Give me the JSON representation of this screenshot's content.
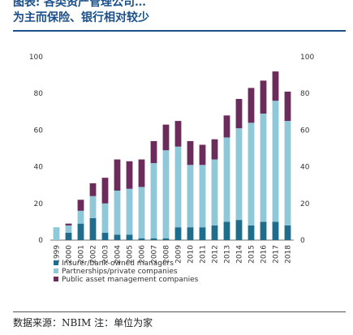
{
  "header": {
    "line1": "图表: 各类资产管理公司…",
    "line2": "为主而保险、银行相对较少"
  },
  "footer": {
    "source": "数据来源：NBIM 注：单位为家"
  },
  "colors": {
    "insurer": "#1f6d8c",
    "partnership": "#8fc8d8",
    "public": "#6b2c5c"
  },
  "chart_data": {
    "type": "bar",
    "stacked": true,
    "categories": [
      "1999",
      "2000",
      "2001",
      "2002",
      "2003",
      "2004",
      "2005",
      "2006",
      "2007",
      "2008",
      "2009",
      "2010",
      "2011",
      "2012",
      "2013",
      "2014",
      "2015",
      "2016",
      "2017",
      "2018"
    ],
    "series": [
      {
        "name": "Insurer/bank-owned managers",
        "values": [
          0,
          4,
          9,
          12,
          4,
          3,
          3,
          1,
          1,
          1,
          7,
          7,
          7,
          8,
          10,
          11,
          8,
          10,
          10,
          8
        ]
      },
      {
        "name": "Partnerships/private companies",
        "values": [
          7,
          4,
          7,
          12,
          16,
          24,
          25,
          28,
          41,
          48,
          44,
          34,
          34,
          36,
          46,
          50,
          56,
          59,
          66,
          57
        ]
      },
      {
        "name": "Public asset management companies",
        "values": [
          0,
          1,
          6,
          7,
          14,
          17,
          15,
          15,
          12,
          14,
          14,
          13,
          11,
          11,
          12,
          16,
          19,
          18,
          16,
          16
        ]
      }
    ],
    "ylim": [
      0,
      100
    ],
    "yticks": [
      0,
      20,
      40,
      60,
      80,
      100
    ],
    "legend_position": "bottom-left"
  }
}
